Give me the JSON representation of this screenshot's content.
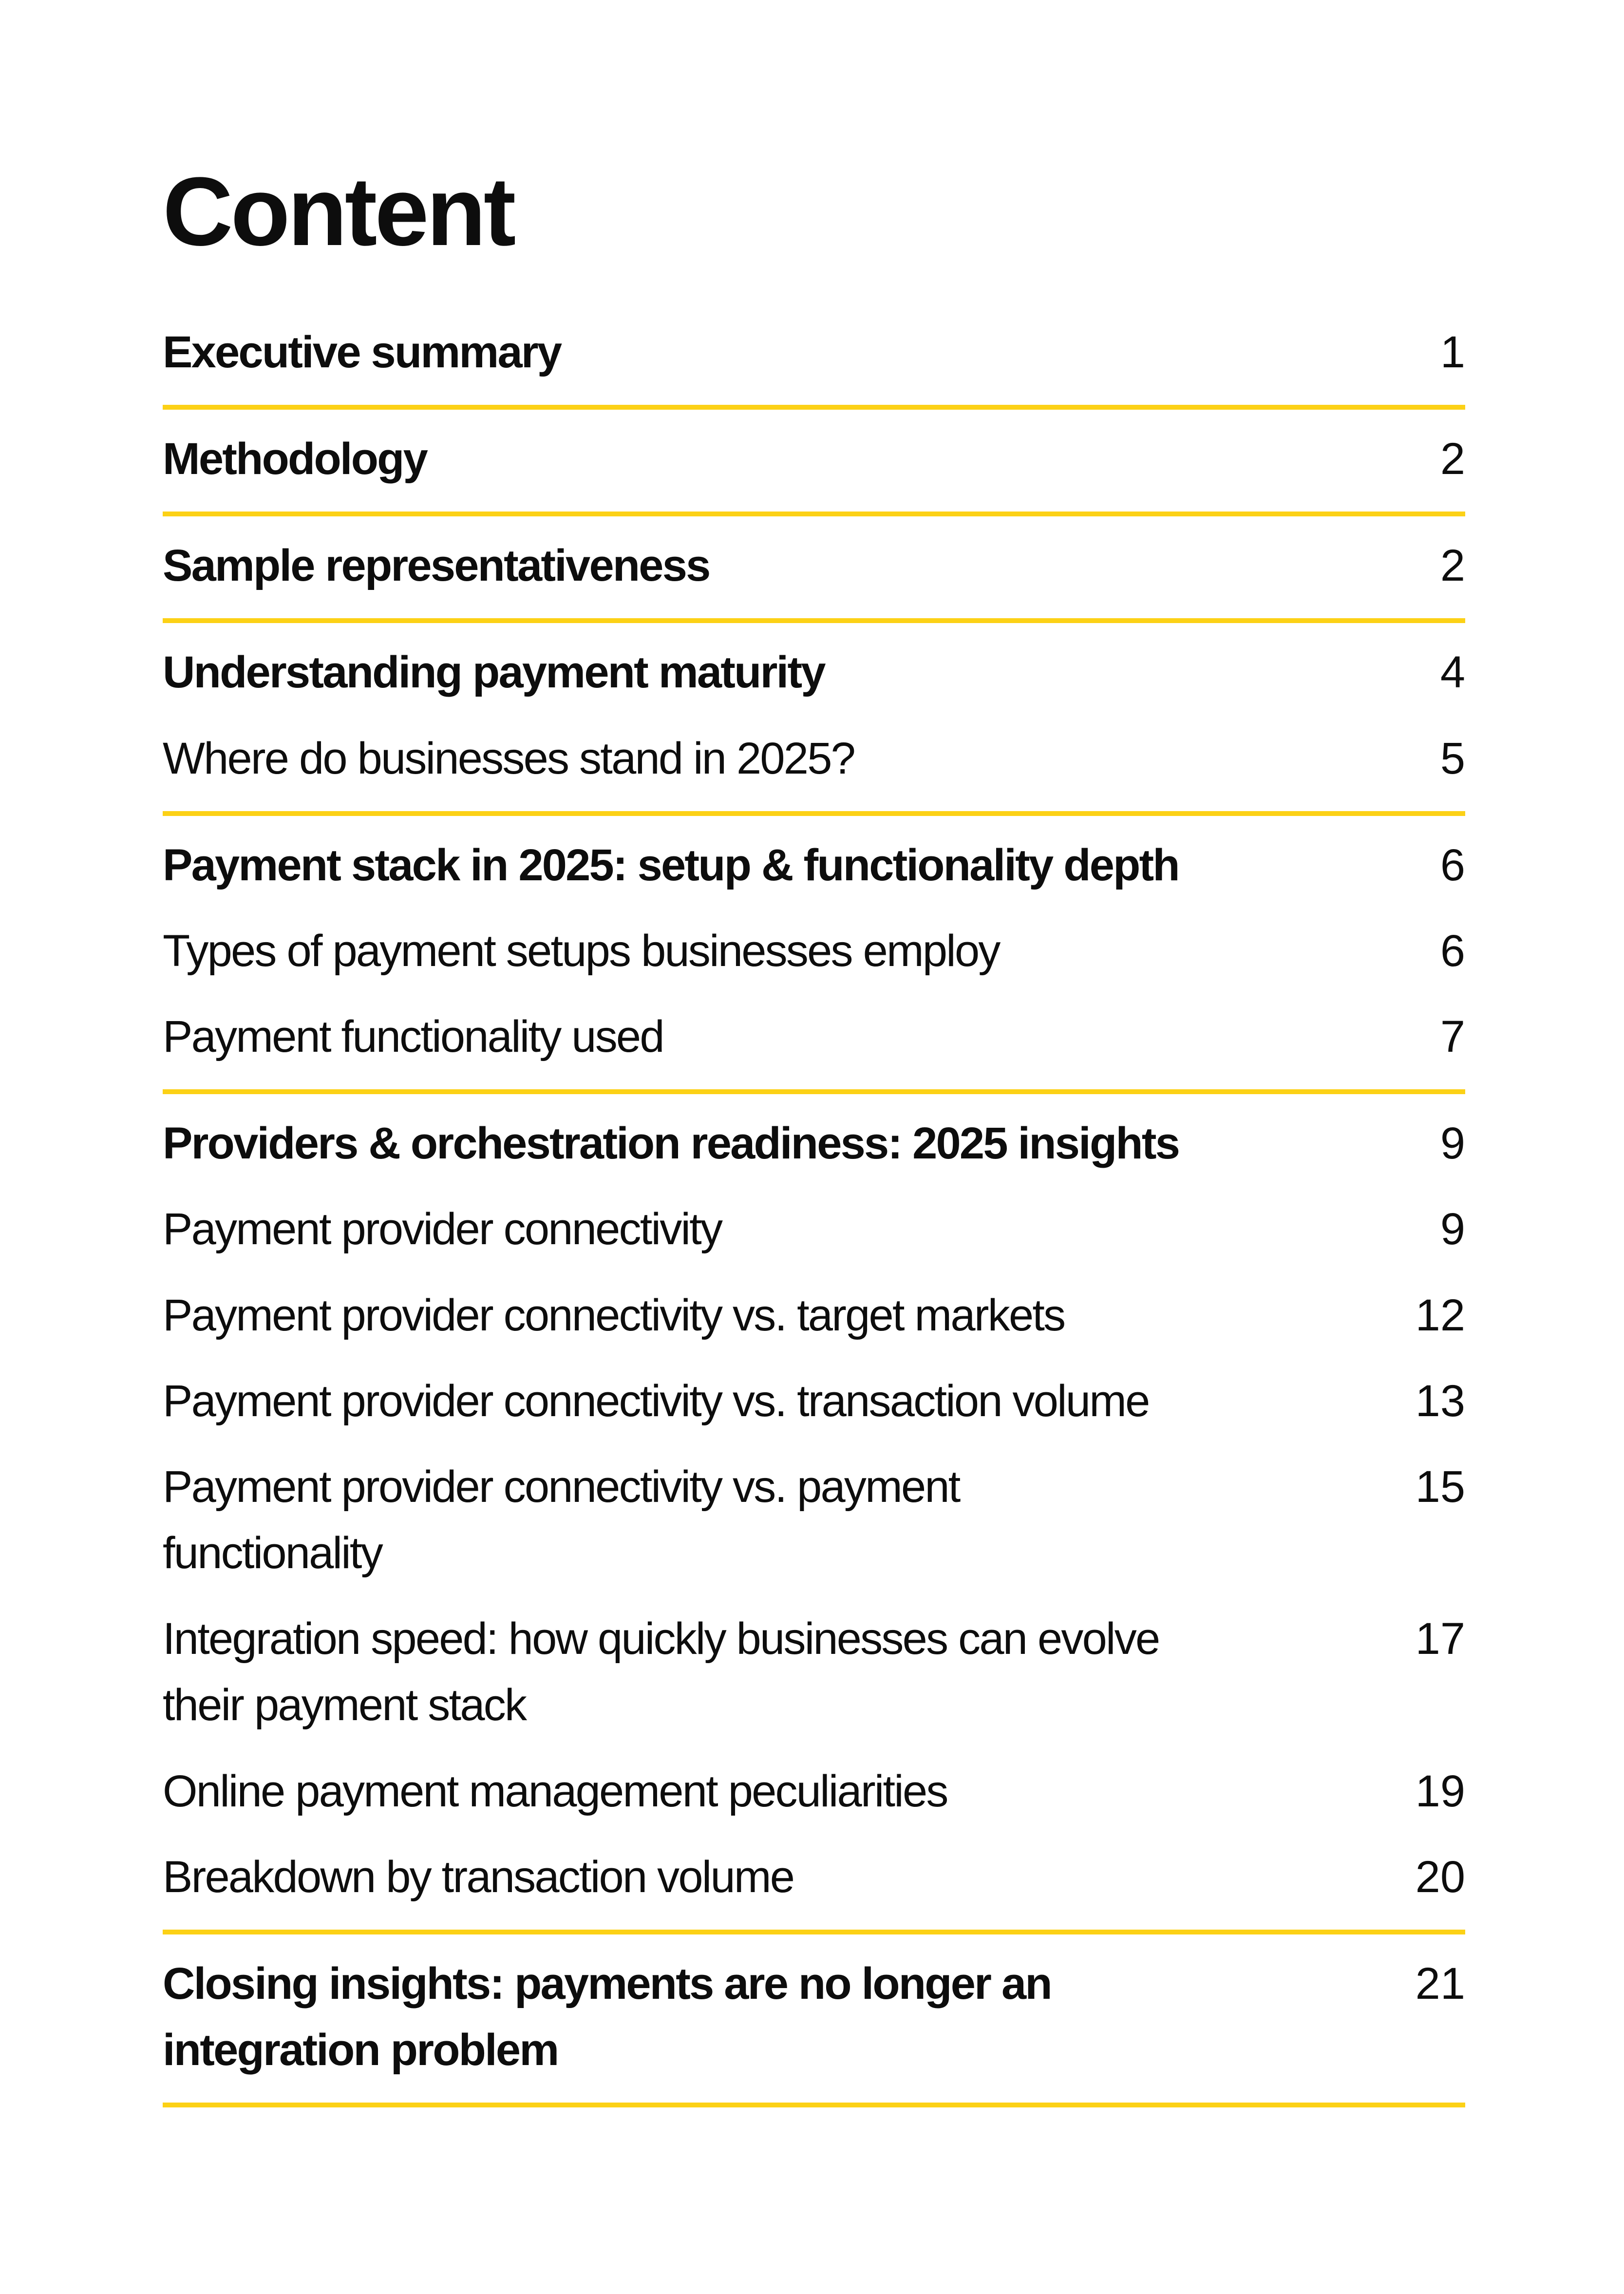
{
  "page": {
    "title": "Content",
    "accent_color": "#FCD116",
    "text_color": "#0d0d0d"
  },
  "toc": {
    "entries": [
      {
        "label": "Executive summary",
        "page": "1",
        "bold": true,
        "divider_after": true
      },
      {
        "label": "Methodology",
        "page": "2",
        "bold": true,
        "divider_after": true
      },
      {
        "label": "Sample representativeness",
        "page": "2",
        "bold": true,
        "divider_after": true
      },
      {
        "label": "Understanding payment maturity",
        "page": "4",
        "bold": true,
        "divider_after": false
      },
      {
        "label": "Where do businesses stand in 2025?",
        "page": "5",
        "bold": false,
        "divider_after": true
      },
      {
        "label": "Payment stack in 2025: setup & functionality depth",
        "page": "6",
        "bold": true,
        "divider_after": false
      },
      {
        "label": "Types of payment setups businesses employ",
        "page": "6",
        "bold": false,
        "divider_after": false
      },
      {
        "label": "Payment functionality used",
        "page": "7",
        "bold": false,
        "divider_after": true
      },
      {
        "label": "Providers & orchestration readiness: 2025 insights",
        "page": "9",
        "bold": true,
        "divider_after": false
      },
      {
        "label": "Payment provider connectivity",
        "page": "9",
        "bold": false,
        "divider_after": false
      },
      {
        "label": "Payment provider connectivity vs. target markets",
        "page": "12",
        "bold": false,
        "divider_after": false
      },
      {
        "label": "Payment provider connectivity vs. transaction volume",
        "page": "13",
        "bold": false,
        "divider_after": false
      },
      {
        "label": "Payment provider connectivity vs. payment\nfunctionality",
        "page": "15",
        "bold": false,
        "divider_after": false
      },
      {
        "label": "Integration speed: how quickly businesses can evolve\ntheir payment stack",
        "page": "17",
        "bold": false,
        "divider_after": false
      },
      {
        "label": "Online payment management peculiarities",
        "page": "19",
        "bold": false,
        "divider_after": false
      },
      {
        "label": "Breakdown by transaction volume",
        "page": "20",
        "bold": false,
        "divider_after": true
      },
      {
        "label": "Closing insights: payments are no longer an\nintegration problem",
        "page": "21",
        "bold": true,
        "divider_after": true
      }
    ]
  }
}
